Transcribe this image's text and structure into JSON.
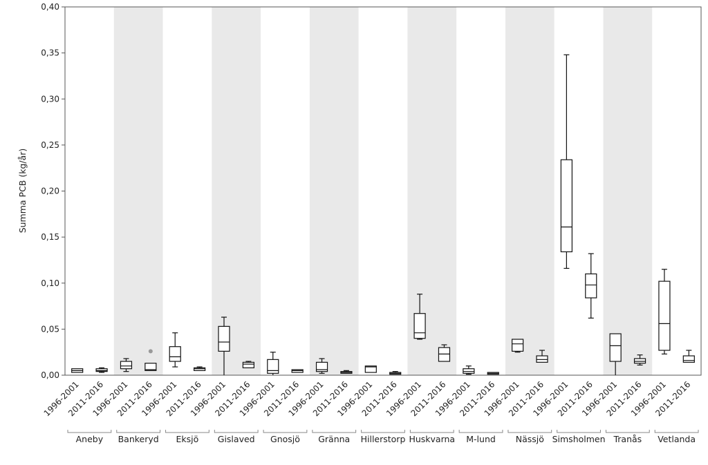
{
  "chart_data": {
    "type": "box",
    "ylabel": "Summa PCB (kg/år)",
    "ylim": [
      0,
      0.4
    ],
    "yticks": [
      "0,00",
      "0,05",
      "0,10",
      "0,15",
      "0,20",
      "0,25",
      "0,30",
      "0,35",
      "0,40"
    ],
    "shaded_groups": [
      "Bankeryd",
      "Gislaved",
      "Gränna",
      "Huskvarna",
      "Nässjö",
      "Tranås"
    ],
    "groups": [
      {
        "name": "Aneby",
        "boxes": [
          {
            "period": "1996-2001",
            "min": 0.003,
            "q1": 0.003,
            "median": 0.005,
            "q3": 0.007,
            "max": 0.007
          },
          {
            "period": "2011-2016",
            "min": 0.003,
            "q1": 0.004,
            "median": 0.005,
            "q3": 0.007,
            "max": 0.008
          }
        ]
      },
      {
        "name": "Bankeryd",
        "boxes": [
          {
            "period": "1996-2001",
            "min": 0.004,
            "q1": 0.007,
            "median": 0.01,
            "q3": 0.015,
            "max": 0.018
          },
          {
            "period": "2011-2016",
            "min": 0.005,
            "q1": 0.005,
            "median": 0.006,
            "q3": 0.013,
            "max": 0.013,
            "outliers": [
              0.026
            ]
          }
        ]
      },
      {
        "name": "Eksjö",
        "boxes": [
          {
            "period": "1996-2001",
            "min": 0.009,
            "q1": 0.015,
            "median": 0.02,
            "q3": 0.031,
            "max": 0.046
          },
          {
            "period": "2011-2016",
            "min": 0.005,
            "q1": 0.005,
            "median": 0.007,
            "q3": 0.008,
            "max": 0.009
          }
        ]
      },
      {
        "name": "Gislaved",
        "boxes": [
          {
            "period": "1996-2001",
            "min": 0.0,
            "q1": 0.026,
            "median": 0.036,
            "q3": 0.053,
            "max": 0.063
          },
          {
            "period": "2011-2016",
            "min": 0.008,
            "q1": 0.008,
            "median": 0.012,
            "q3": 0.014,
            "max": 0.015
          }
        ]
      },
      {
        "name": "Gnosjö",
        "boxes": [
          {
            "period": "1996-2001",
            "min": 0.0,
            "q1": 0.002,
            "median": 0.005,
            "q3": 0.017,
            "max": 0.025
          },
          {
            "period": "2011-2016",
            "min": 0.003,
            "q1": 0.003,
            "median": 0.005,
            "q3": 0.006,
            "max": 0.006
          }
        ]
      },
      {
        "name": "Gränna",
        "boxes": [
          {
            "period": "1996-2001",
            "min": 0.002,
            "q1": 0.004,
            "median": 0.006,
            "q3": 0.014,
            "max": 0.018
          },
          {
            "period": "2011-2016",
            "min": 0.002,
            "q1": 0.002,
            "median": 0.003,
            "q3": 0.004,
            "max": 0.005
          }
        ]
      },
      {
        "name": "Hillerstorp",
        "boxes": [
          {
            "period": "1996-2001",
            "min": 0.003,
            "q1": 0.003,
            "median": 0.009,
            "q3": 0.01,
            "max": 0.01
          },
          {
            "period": "2011-2016",
            "min": 0.001,
            "q1": 0.001,
            "median": 0.002,
            "q3": 0.003,
            "max": 0.004
          }
        ]
      },
      {
        "name": "Huskvarna",
        "boxes": [
          {
            "period": "1996-2001",
            "min": 0.039,
            "q1": 0.04,
            "median": 0.046,
            "q3": 0.067,
            "max": 0.088
          },
          {
            "period": "2011-2016",
            "min": 0.015,
            "q1": 0.015,
            "median": 0.023,
            "q3": 0.03,
            "max": 0.033
          }
        ]
      },
      {
        "name": "M-lund",
        "boxes": [
          {
            "period": "1996-2001",
            "min": 0.001,
            "q1": 0.002,
            "median": 0.004,
            "q3": 0.007,
            "max": 0.01
          },
          {
            "period": "2011-2016",
            "min": 0.001,
            "q1": 0.001,
            "median": 0.002,
            "q3": 0.003,
            "max": 0.003
          }
        ]
      },
      {
        "name": "Nässjö",
        "boxes": [
          {
            "period": "1996-2001",
            "min": 0.025,
            "q1": 0.026,
            "median": 0.034,
            "q3": 0.039,
            "max": 0.039
          },
          {
            "period": "2011-2016",
            "min": 0.014,
            "q1": 0.014,
            "median": 0.017,
            "q3": 0.021,
            "max": 0.027
          }
        ]
      },
      {
        "name": "Simsholmen",
        "boxes": [
          {
            "period": "1996-2001",
            "min": 0.116,
            "q1": 0.134,
            "median": 0.161,
            "q3": 0.234,
            "max": 0.348
          },
          {
            "period": "2011-2016",
            "min": 0.062,
            "q1": 0.084,
            "median": 0.098,
            "q3": 0.11,
            "max": 0.132
          }
        ]
      },
      {
        "name": "Tranås",
        "boxes": [
          {
            "period": "1996-2001",
            "min": 0.0,
            "q1": 0.015,
            "median": 0.032,
            "q3": 0.045,
            "max": 0.045
          },
          {
            "period": "2011-2016",
            "min": 0.011,
            "q1": 0.013,
            "median": 0.015,
            "q3": 0.018,
            "max": 0.022
          }
        ]
      },
      {
        "name": "Vetlanda",
        "boxes": [
          {
            "period": "1996-2001",
            "min": 0.023,
            "q1": 0.027,
            "median": 0.056,
            "q3": 0.102,
            "max": 0.115
          },
          {
            "period": "2011-2016",
            "min": 0.014,
            "q1": 0.014,
            "median": 0.016,
            "q3": 0.021,
            "max": 0.027
          }
        ]
      }
    ]
  },
  "colors": {
    "shade": "#e9e9e9",
    "box_stroke": "#111111",
    "outlier": "#999999",
    "axis": "#555555"
  }
}
